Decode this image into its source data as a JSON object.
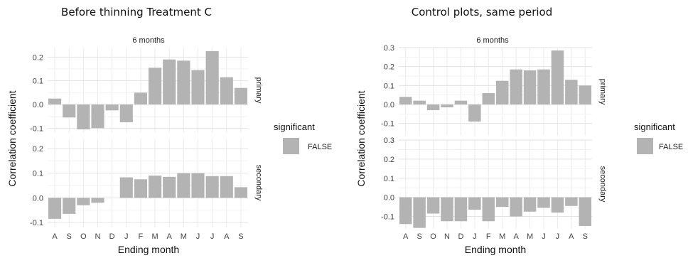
{
  "chart_data": [
    {
      "type": "bar",
      "title": "Before thinning Treatment C",
      "strip_top": "6 months",
      "xlabel": "Ending month",
      "ylabel": "Correlation coefficient",
      "categories": [
        "A",
        "S",
        "O",
        "N",
        "D",
        "J",
        "F",
        "M",
        "A",
        "M",
        "J",
        "J",
        "A",
        "S"
      ],
      "facets": [
        {
          "name": "primary",
          "values": [
            0.025,
            -0.055,
            -0.105,
            -0.1,
            -0.025,
            -0.075,
            0.05,
            0.155,
            0.19,
            0.185,
            0.145,
            0.225,
            0.115,
            0.07
          ]
        },
        {
          "name": "secondary",
          "values": [
            -0.085,
            -0.065,
            -0.03,
            -0.02,
            0,
            0.083,
            0.075,
            0.09,
            0.085,
            0.1,
            0.1,
            0.088,
            0.088,
            0.043
          ]
        }
      ],
      "ylim": [
        -0.12,
        0.24
      ],
      "yticks": [
        "0.2",
        "0.1",
        "0.0",
        "-0.1"
      ],
      "ytick_values": [
        0.2,
        0.1,
        0.0,
        -0.1
      ],
      "legend": {
        "title": "significant",
        "label": "FALSE",
        "color": "#b3b3b3"
      },
      "bar_color": "#b3b3b3",
      "grid": true
    },
    {
      "type": "bar",
      "title": "Control plots, same period",
      "strip_top": "6 months",
      "xlabel": "Ending month",
      "ylabel": "Correlation coefficient",
      "categories": [
        "A",
        "S",
        "O",
        "N",
        "D",
        "J",
        "F",
        "M",
        "A",
        "M",
        "J",
        "J",
        "A",
        "S"
      ],
      "facets": [
        {
          "name": "primary",
          "values": [
            0.04,
            0.02,
            -0.03,
            -0.015,
            0.02,
            -0.09,
            0.06,
            0.125,
            0.185,
            0.18,
            0.185,
            0.285,
            0.13,
            0.1
          ]
        },
        {
          "name": "secondary",
          "values": [
            -0.14,
            -0.16,
            -0.085,
            -0.125,
            -0.125,
            -0.065,
            -0.125,
            -0.05,
            -0.1,
            -0.075,
            -0.055,
            -0.08,
            -0.045,
            -0.15
          ]
        }
      ],
      "ylim": [
        -0.165,
        0.3
      ],
      "yticks": [
        "0.3",
        "0.2",
        "0.1",
        "0.0",
        "-0.1"
      ],
      "ytick_values": [
        0.3,
        0.2,
        0.1,
        0.0,
        -0.1
      ],
      "legend": {
        "title": "significant",
        "label": "FALSE",
        "color": "#b3b3b3"
      },
      "bar_color": "#b3b3b3",
      "grid": true
    }
  ]
}
